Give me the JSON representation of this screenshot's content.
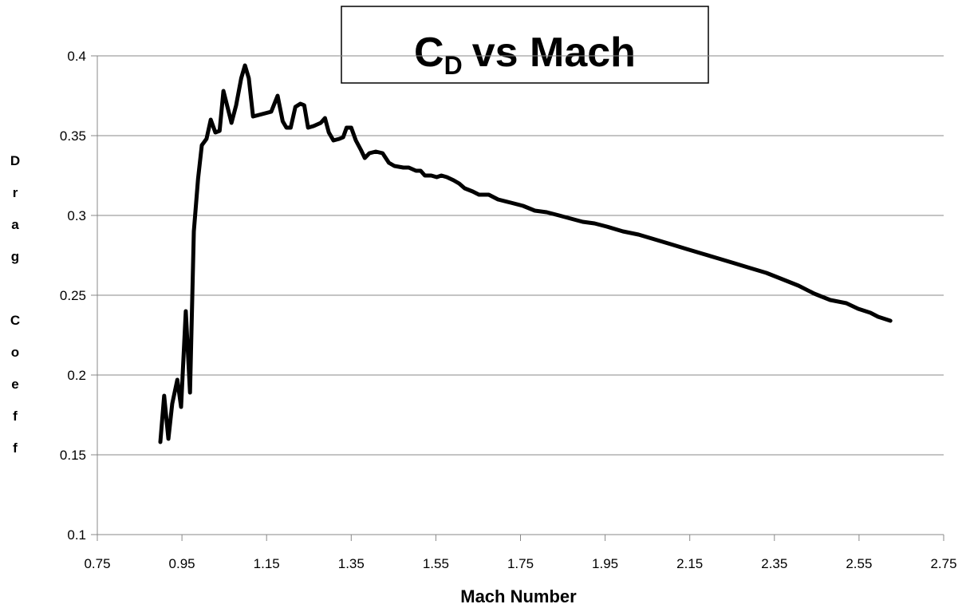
{
  "chart_data": {
    "type": "line",
    "title": {
      "main": "C",
      "subscript": "D",
      "rest": "vs Mach"
    },
    "x_label": "Mach Number",
    "y_label": "Drag Coeff",
    "x": [
      0.899,
      0.908,
      0.918,
      0.927,
      0.939,
      0.948,
      0.959,
      0.969,
      0.978,
      0.988,
      0.997,
      1.008,
      1.018,
      1.029,
      1.039,
      1.048,
      1.067,
      1.078,
      1.09,
      1.099,
      1.108,
      1.118,
      1.161,
      1.176,
      1.188,
      1.197,
      1.207,
      1.218,
      1.23,
      1.239,
      1.248,
      1.261,
      1.278,
      1.288,
      1.297,
      1.308,
      1.322,
      1.331,
      1.339,
      1.35,
      1.361,
      1.373,
      1.382,
      1.393,
      1.408,
      1.424,
      1.439,
      1.452,
      1.473,
      1.486,
      1.503,
      1.514,
      1.524,
      1.539,
      1.552,
      1.563,
      1.576,
      1.592,
      1.605,
      1.618,
      1.637,
      1.652,
      1.675,
      1.697,
      1.727,
      1.756,
      1.784,
      1.812,
      1.841,
      1.869,
      1.897,
      1.925,
      1.954,
      1.992,
      2.029,
      2.067,
      2.105,
      2.142,
      2.18,
      2.218,
      2.256,
      2.293,
      2.331,
      2.369,
      2.407,
      2.444,
      2.482,
      2.52,
      2.548,
      2.577,
      2.595,
      2.624
    ],
    "series": [
      {
        "name": "Drag Coeff",
        "color": "#000000",
        "values": [
          0.158,
          0.187,
          0.16,
          0.182,
          0.197,
          0.18,
          0.24,
          0.189,
          0.29,
          0.323,
          0.344,
          0.348,
          0.36,
          0.352,
          0.353,
          0.378,
          0.358,
          0.369,
          0.386,
          0.394,
          0.386,
          0.362,
          0.365,
          0.375,
          0.359,
          0.355,
          0.355,
          0.368,
          0.37,
          0.369,
          0.355,
          0.356,
          0.358,
          0.361,
          0.352,
          0.347,
          0.348,
          0.349,
          0.355,
          0.355,
          0.347,
          0.341,
          0.336,
          0.339,
          0.34,
          0.339,
          0.333,
          0.331,
          0.33,
          0.33,
          0.328,
          0.328,
          0.325,
          0.325,
          0.324,
          0.325,
          0.324,
          0.322,
          0.32,
          0.317,
          0.315,
          0.313,
          0.313,
          0.31,
          0.308,
          0.306,
          0.303,
          0.302,
          0.3,
          0.298,
          0.296,
          0.295,
          0.293,
          0.29,
          0.288,
          0.285,
          0.282,
          0.279,
          0.276,
          0.273,
          0.27,
          0.267,
          0.264,
          0.26,
          0.256,
          0.251,
          0.247,
          0.245,
          0.2415,
          0.239,
          0.2365,
          0.234
        ]
      }
    ],
    "xlim": [
      0.75,
      2.75
    ],
    "xticks": [
      0.75,
      0.95,
      1.15,
      1.35,
      1.55,
      1.75,
      1.95,
      2.15,
      2.35,
      2.55,
      2.75
    ],
    "ylim": [
      0.1,
      0.4
    ],
    "yticks": [
      0.1,
      0.15,
      0.2,
      0.25,
      0.3,
      0.35,
      0.4
    ],
    "grid": true
  }
}
